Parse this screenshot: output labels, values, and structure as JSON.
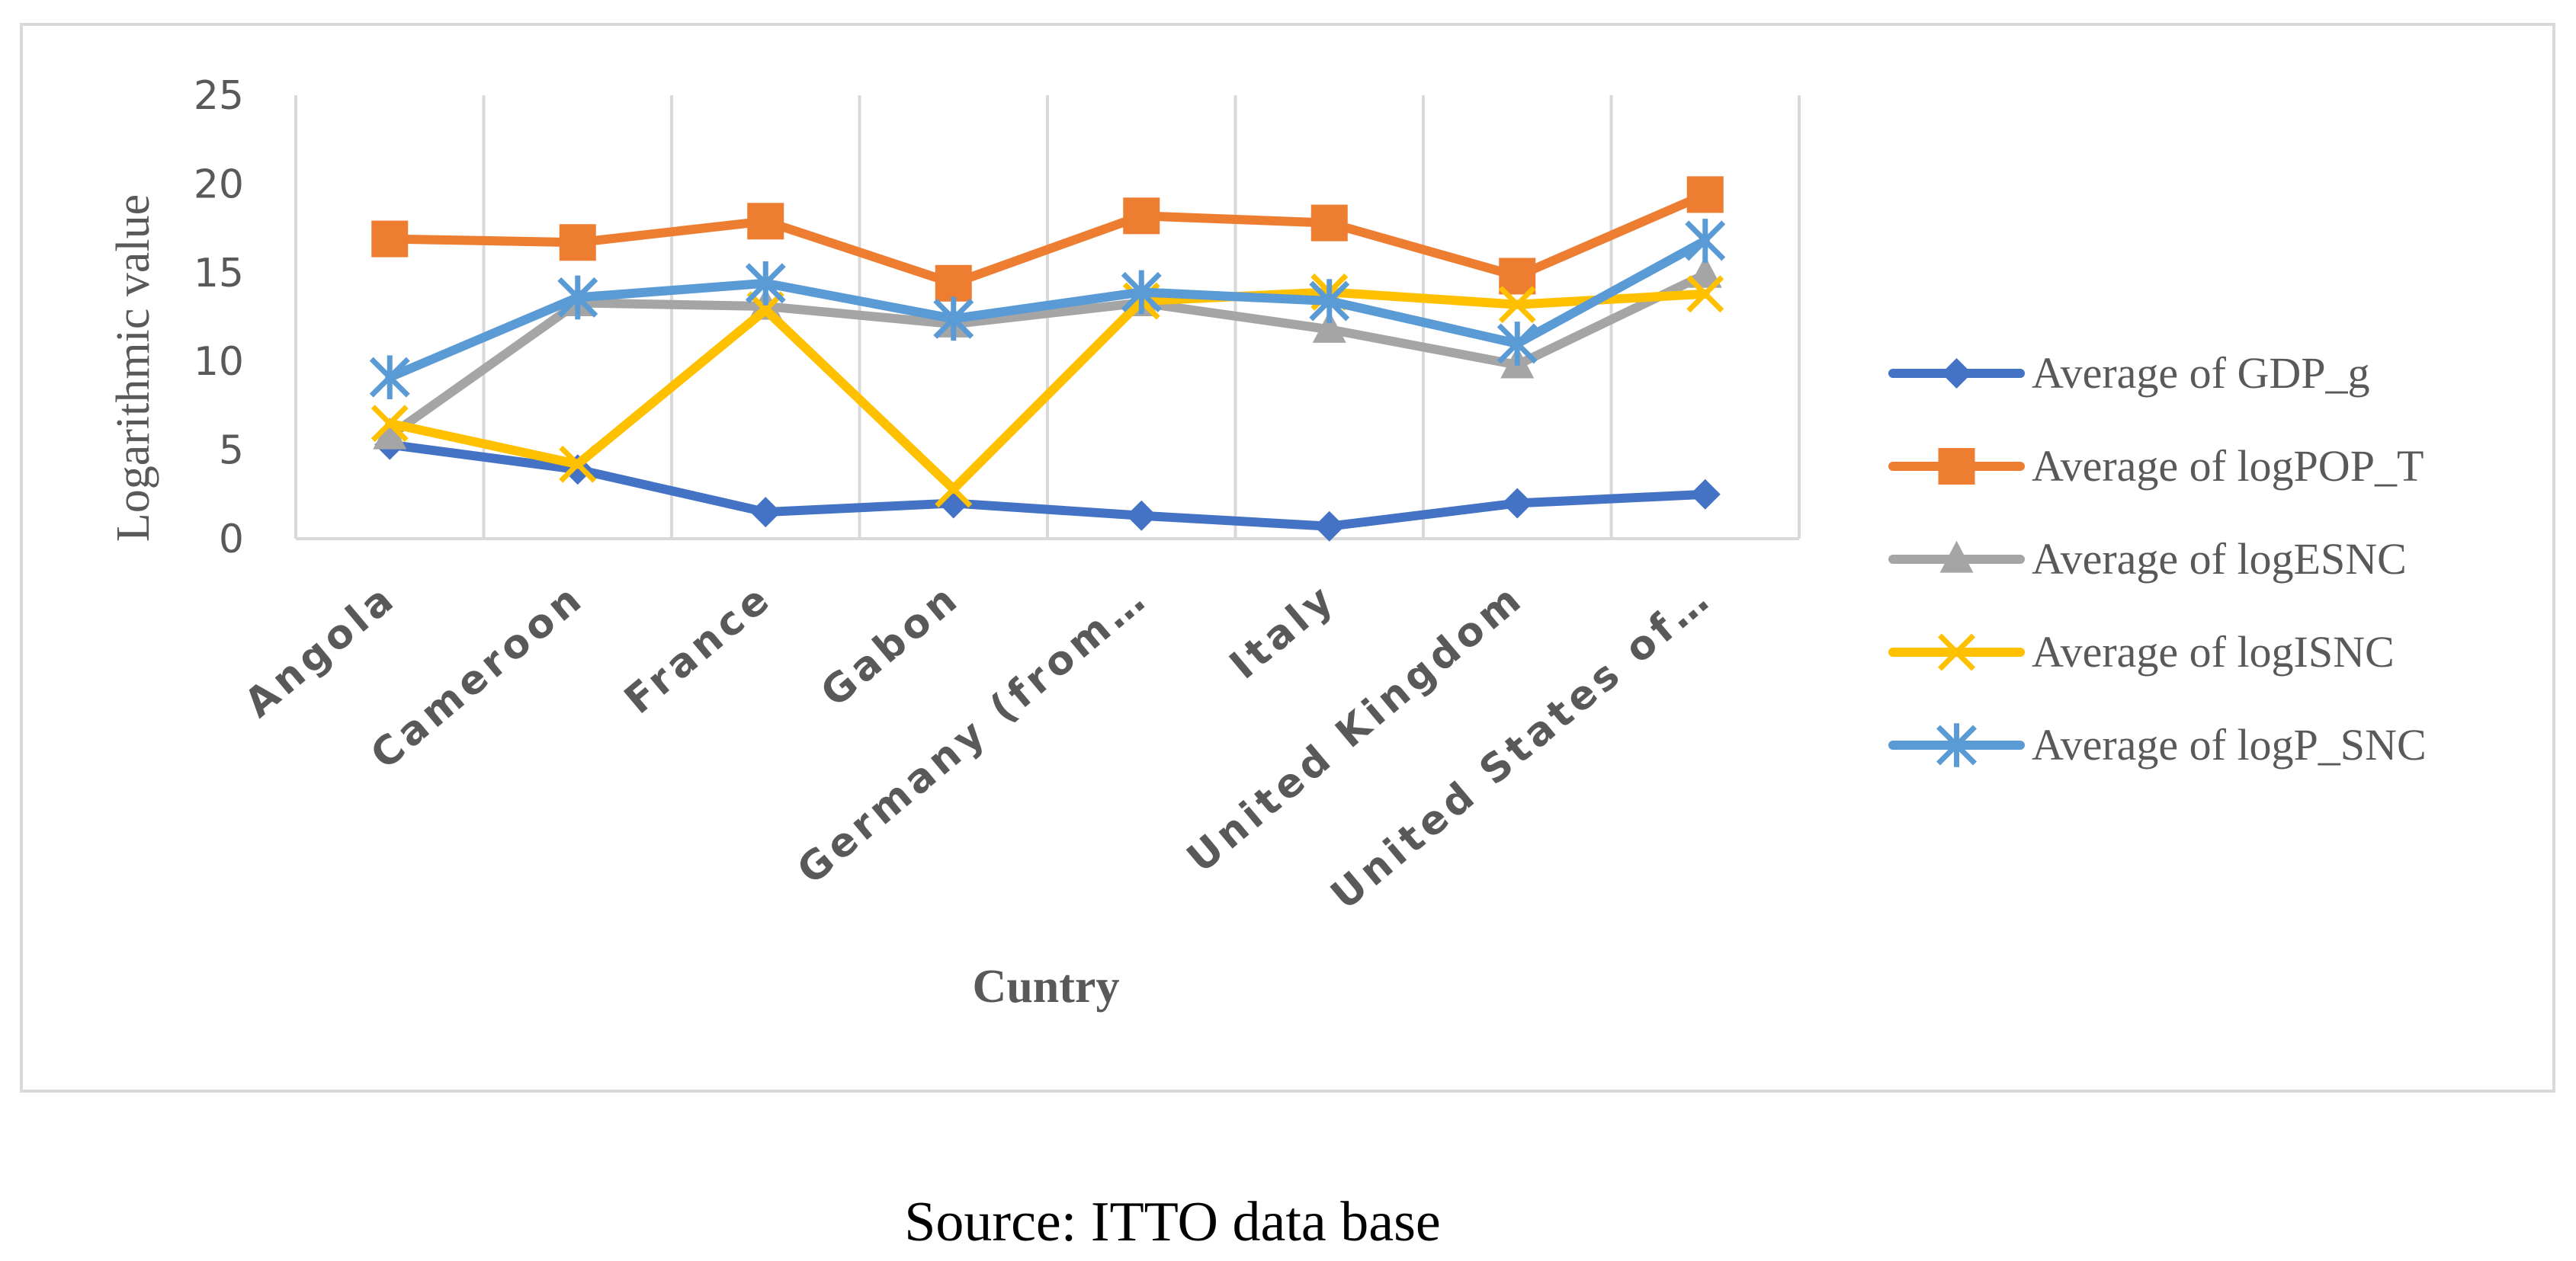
{
  "chart_data": {
    "type": "line",
    "title": "",
    "xlabel": "Cuntry",
    "ylabel": "Logarithmic value",
    "ylim": [
      0,
      25
    ],
    "yticks": [
      0,
      5,
      10,
      15,
      20,
      25
    ],
    "grid": "vertical",
    "legend_position": "right",
    "categories": [
      "Angola",
      "Cameroon",
      "France",
      "Gabon",
      "Germany (from…",
      "Italy",
      "United Kingdom",
      "United States of…"
    ],
    "series": [
      {
        "name": "Average of GDP_g",
        "color": "#4472C4",
        "marker": "diamond",
        "values": [
          5.3,
          3.9,
          1.5,
          2.0,
          1.3,
          0.7,
          2.0,
          2.5
        ]
      },
      {
        "name": "Average of logPOP_T",
        "color": "#ED7D31",
        "marker": "square",
        "values": [
          16.9,
          16.7,
          17.9,
          14.4,
          18.2,
          17.8,
          14.8,
          19.4
        ]
      },
      {
        "name": "Average of logESNC",
        "color": "#A5A5A5",
        "marker": "triangle",
        "values": [
          5.8,
          13.3,
          13.1,
          12.1,
          13.3,
          11.8,
          9.8,
          14.9
        ]
      },
      {
        "name": "Average of logISNC",
        "color": "#FFC000",
        "marker": "x",
        "values": [
          6.5,
          4.2,
          12.9,
          2.8,
          13.4,
          13.9,
          13.2,
          13.8
        ]
      },
      {
        "name": "Average of logP_SNC",
        "color": "#5B9BD5",
        "marker": "star",
        "values": [
          9.1,
          13.6,
          14.4,
          12.4,
          13.9,
          13.4,
          11.0,
          16.8
        ]
      }
    ]
  },
  "footer": {
    "source": "Source: ITTO data base"
  }
}
